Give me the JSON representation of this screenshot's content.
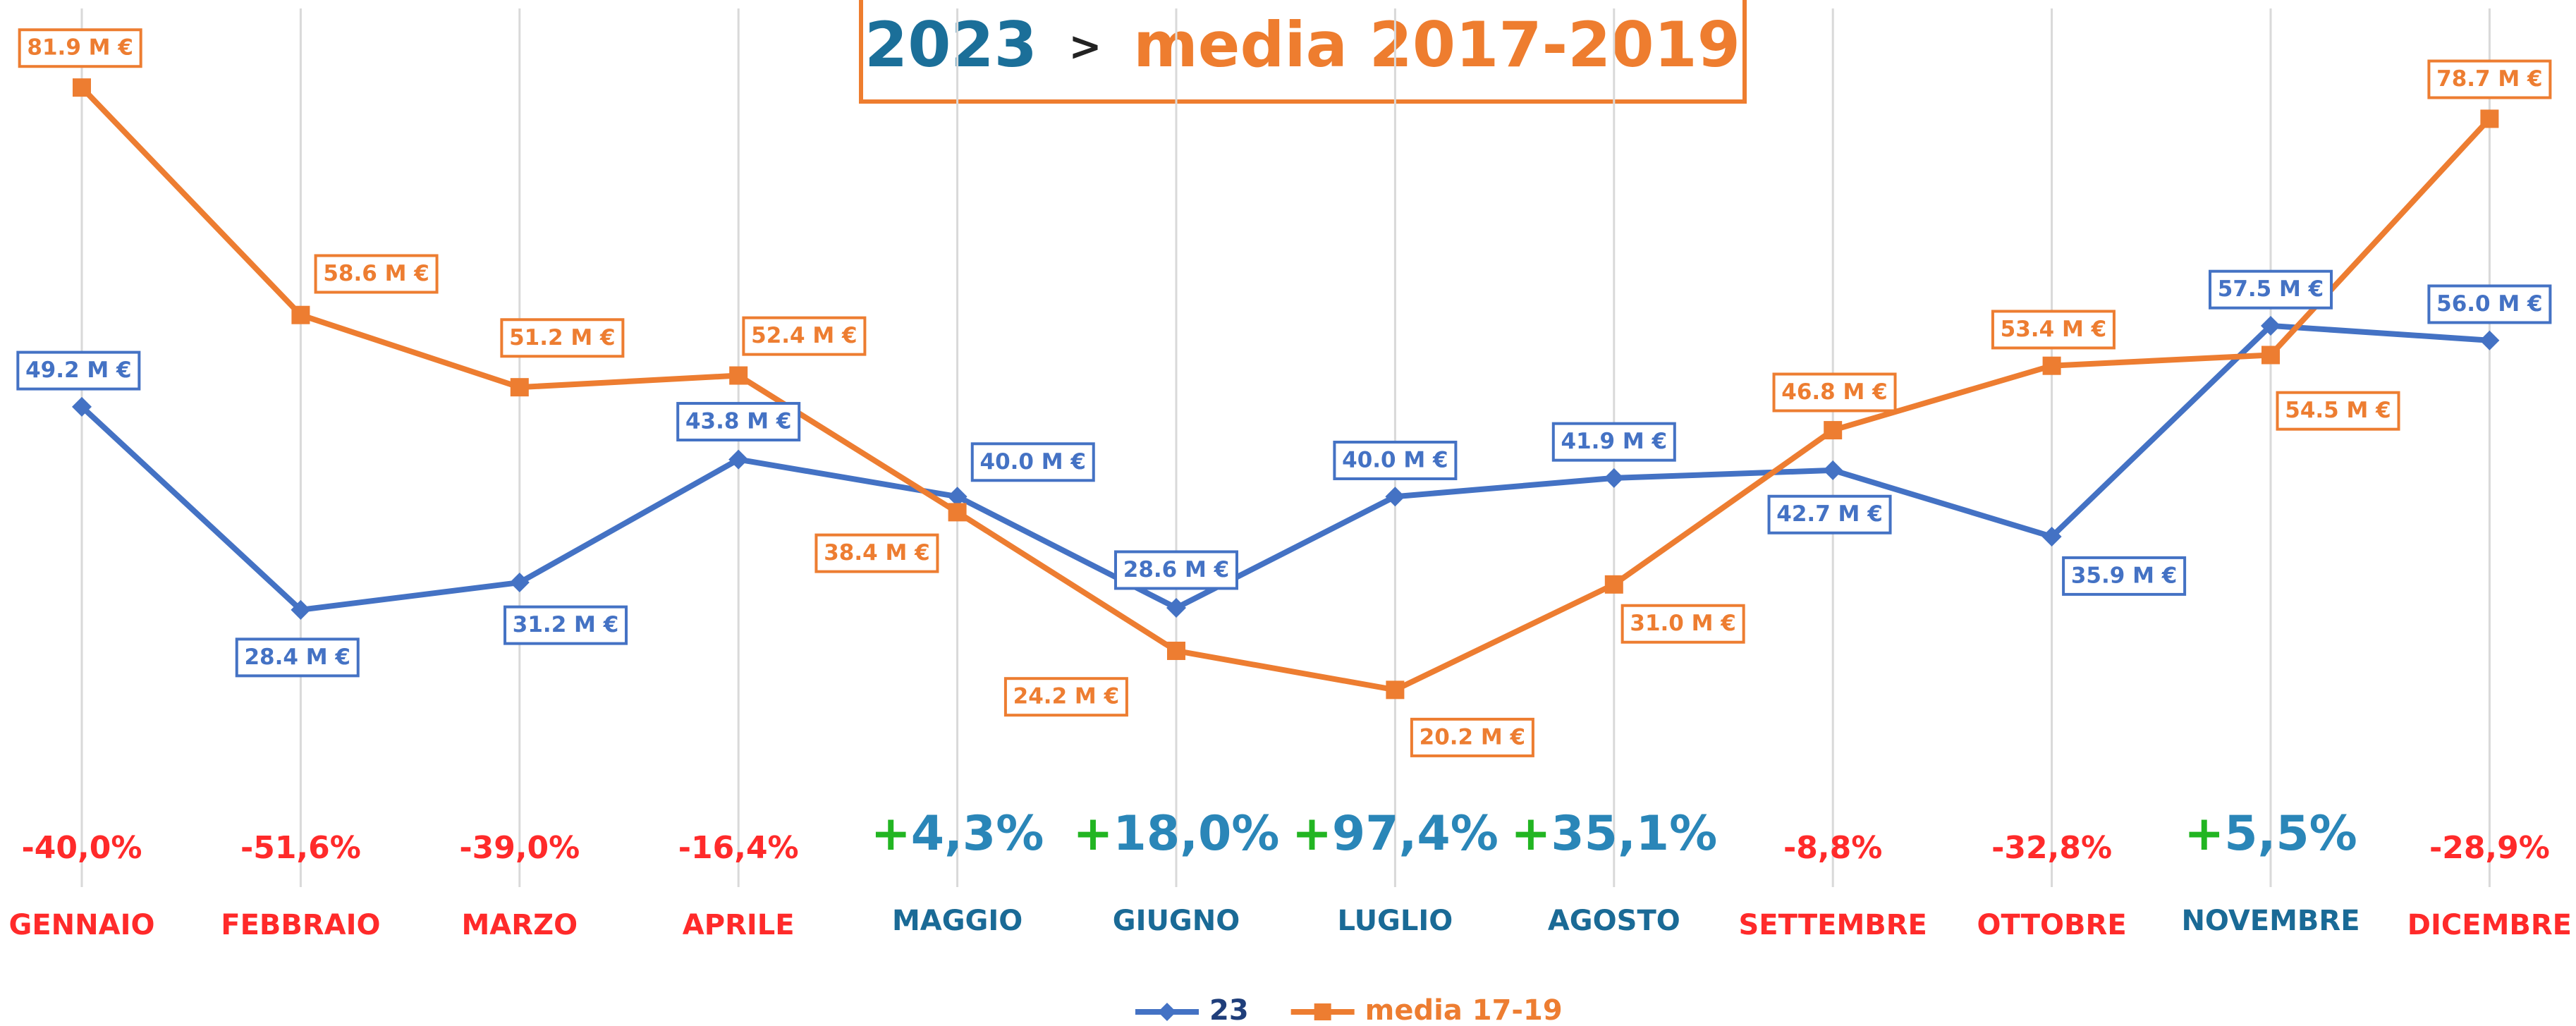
{
  "chart_data": {
    "type": "line",
    "title": [
      "2023",
      ">",
      "media 2017-2019"
    ],
    "categories": [
      "GENNAIO",
      "FEBBRAIO",
      "MARZO",
      "APRILE",
      "MAGGIO",
      "GIUGNO",
      "LUGLIO",
      "AGOSTO",
      "SETTEMBRE",
      "OTTOBRE",
      "NOVEMBRE",
      "DICEMBRE"
    ],
    "annotations": [
      "-40,0%",
      "-51,6%",
      "-39,0%",
      "-16,4%",
      "+4,3%",
      "+18,0%",
      "+97,4%",
      "+35,1%",
      "-8,8%",
      "-32,8%",
      "+5,5%",
      "-28,9%"
    ],
    "series": [
      {
        "name": "23",
        "color": "#4472c4",
        "marker": "diamond",
        "values": [
          49.2,
          28.4,
          31.2,
          43.8,
          40.0,
          28.6,
          40.0,
          41.9,
          42.7,
          35.9,
          57.5,
          56.0
        ],
        "value_labels": [
          "49.2 M €",
          "28.4 M €",
          "31.2 M €",
          "43.8 M €",
          "40.0 M €",
          "28.6 M €",
          "40.0 M €",
          "41.9 M €",
          "42.7 M €",
          "35.9 M €",
          "57.5 M €",
          "56.0 M €"
        ]
      },
      {
        "name": "media 17-19",
        "color": "#ed7d31",
        "marker": "square",
        "values": [
          81.9,
          58.6,
          51.2,
          52.4,
          38.4,
          24.2,
          20.2,
          31.0,
          46.8,
          53.4,
          54.5,
          78.7
        ],
        "value_labels": [
          "81.9 M €",
          "58.6 M €",
          "51.2 M €",
          "52.4 M €",
          "38.4 M €",
          "24.2 M €",
          "20.2 M €",
          "31.0 M €",
          "46.8 M €",
          "53.4 M €",
          "54.5 M €",
          "78.7 M €"
        ]
      }
    ],
    "ylim": [
      0,
      90
    ],
    "grid": true
  }
}
